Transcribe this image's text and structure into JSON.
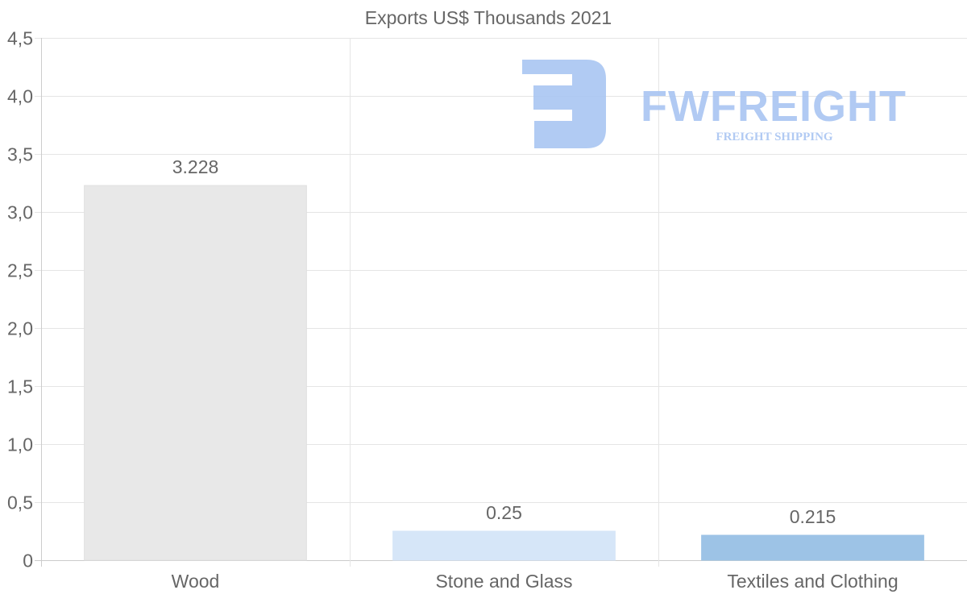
{
  "chart_data": {
    "type": "bar",
    "title": "Exports US$ Thousands 2021",
    "categories": [
      "Wood",
      "Stone and Glass",
      "Textiles and Clothing"
    ],
    "values": [
      3.228,
      0.25,
      0.215
    ],
    "value_labels": [
      "3.228",
      "0.25",
      "0.215"
    ],
    "colors": [
      "#e8e8e8",
      "#d6e6f8",
      "#9dc3e6"
    ],
    "xlabel": "",
    "ylabel": "",
    "ylim": [
      0,
      4.5
    ],
    "yticks": [
      0,
      0.5,
      1.0,
      1.5,
      2.0,
      2.5,
      3.0,
      3.5,
      4.0,
      4.5
    ],
    "ytick_labels": [
      "0",
      "0,5",
      "1,0",
      "1,5",
      "2,0",
      "2,5",
      "3,0",
      "3,5",
      "4,0",
      "4,5"
    ],
    "grid": true,
    "legend": "none"
  },
  "watermark": {
    "brand": "FWFREIGHT",
    "tagline": "FREIGHT SHIPPING",
    "color": "#a9c5f2"
  }
}
